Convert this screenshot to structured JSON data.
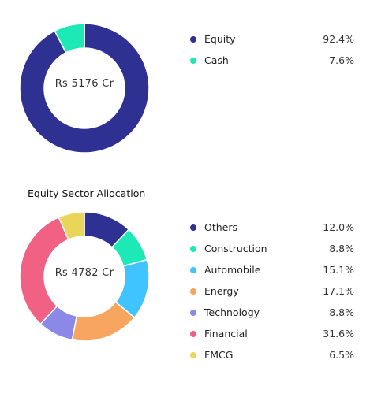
{
  "chart_data": [
    {
      "type": "pie",
      "variant": "donut",
      "center_label": "Rs 5176 Cr",
      "categories": [
        "Equity",
        "Cash"
      ],
      "values": [
        92.4,
        7.6
      ],
      "value_labels": [
        "92.4%",
        "7.6%"
      ],
      "colors": [
        "#2e3192",
        "#1de9b6"
      ],
      "legend_position": "right"
    },
    {
      "type": "pie",
      "variant": "donut",
      "title": "Equity Sector Allocation",
      "center_label": "Rs 4782 Cr",
      "categories": [
        "Others",
        "Construction",
        "Automobile",
        "Energy",
        "Technology",
        "Financial",
        "FMCG"
      ],
      "values": [
        12.0,
        8.8,
        15.1,
        17.1,
        8.8,
        31.6,
        6.5
      ],
      "value_labels": [
        "12.0%",
        "8.8%",
        "15.1%",
        "17.1%",
        "8.8%",
        "31.6%",
        "6.5%"
      ],
      "colors": [
        "#2e3192",
        "#1de9b6",
        "#40c4ff",
        "#f8a55f",
        "#8c88e8",
        "#f06184",
        "#e8d55a"
      ],
      "legend_position": "right"
    }
  ]
}
